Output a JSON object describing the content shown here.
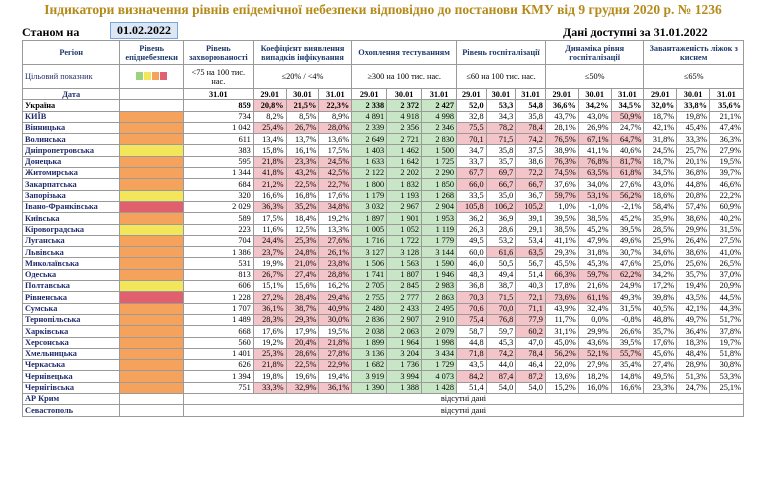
{
  "title": "Індикатори визначення рівнів епідемічної небезпеки відповідно до постанови КМУ від 9 грудня 2020 р. № 1236",
  "as_of_label": "Станом на",
  "as_of_date": "01.02.2022",
  "available_label": "Дані доступні за 31.01.2022",
  "headers": {
    "region": "Регіон",
    "level": "Рівень епіднебезпеки",
    "incidence": "Рівень захворюваності",
    "detection": "Коефіцієнт виявлення випадків інфікування",
    "testing": "Охоплення тестуванням",
    "hosp": "Рівень госпіталізації",
    "dynamics": "Динаміка рівня госпіталізації",
    "oxygen": "Завантаженість ліжок з киснем"
  },
  "targets": {
    "label": "Цільовий показник",
    "incidence": "<75 на 100 тис. нас.",
    "detection": "≤20% / <4%",
    "testing": "≥300 на 100 тис. нас.",
    "hosp": "≤60 на 100 тис. нас.",
    "dynamics": "≤50%",
    "oxygen": "≤65%"
  },
  "level_swatch_colors": [
    "#9cd27a",
    "#f4e65a",
    "#f5a25d",
    "#e0606d"
  ],
  "date_label": "Дата",
  "dates": {
    "incidence": [
      "31.01"
    ],
    "three": [
      "29.01",
      "30.01",
      "31.01"
    ]
  },
  "no_data_text": "відсутні дані",
  "colors": {
    "pink": "#f4c5c8",
    "green": "#c8e6c5",
    "orange": "#f5a25d",
    "yellow": "#f4e65a",
    "red": "#e0606d"
  },
  "rows": [
    {
      "region": "Україна",
      "level": "",
      "inc": "859",
      "det": [
        "20,8%",
        "21,5%",
        "22,3%"
      ],
      "test": [
        "2 338",
        "2 372",
        "2 427"
      ],
      "hosp": [
        "52,0",
        "53,3",
        "54,8"
      ],
      "dyn": [
        "36,6%",
        "34,2%",
        "34,5%"
      ],
      "oxy": [
        "32,0%",
        "33,8%",
        "35,6%"
      ],
      "det_pink": [
        1,
        1,
        1
      ],
      "hosp_pink": [
        0,
        0,
        0
      ],
      "dyn_pink": [
        0,
        0,
        0
      ],
      "test_green": [
        1,
        1,
        1
      ]
    },
    {
      "region": "КИЇВ",
      "level": "orange",
      "inc": "734",
      "det": [
        "8,2%",
        "8,5%",
        "8,9%"
      ],
      "test": [
        "4 891",
        "4 918",
        "4 998"
      ],
      "hosp": [
        "32,8",
        "34,3",
        "35,8"
      ],
      "dyn": [
        "43,7%",
        "43,0%",
        "50,9%"
      ],
      "oxy": [
        "18,7%",
        "19,8%",
        "21,1%"
      ],
      "det_pink": [
        0,
        0,
        0
      ],
      "hosp_pink": [
        0,
        0,
        0
      ],
      "dyn_pink": [
        0,
        0,
        1
      ],
      "test_green": [
        1,
        1,
        1
      ]
    },
    {
      "region": "Вінницька",
      "level": "orange",
      "inc": "1 042",
      "det": [
        "25,4%",
        "26,7%",
        "28,0%"
      ],
      "test": [
        "2 339",
        "2 356",
        "2 346"
      ],
      "hosp": [
        "75,5",
        "78,2",
        "78,4"
      ],
      "dyn": [
        "28,1%",
        "26,9%",
        "24,7%"
      ],
      "oxy": [
        "42,1%",
        "45,4%",
        "47,4%"
      ],
      "det_pink": [
        1,
        1,
        1
      ],
      "hosp_pink": [
        1,
        1,
        1
      ],
      "dyn_pink": [
        0,
        0,
        0
      ],
      "test_green": [
        1,
        1,
        1
      ]
    },
    {
      "region": "Волинська",
      "level": "orange",
      "inc": "611",
      "det": [
        "13,4%",
        "13,7%",
        "13,6%"
      ],
      "test": [
        "2 649",
        "2 721",
        "2 830"
      ],
      "hosp": [
        "70,1",
        "71,5",
        "74,2"
      ],
      "dyn": [
        "76,5%",
        "67,1%",
        "64,7%"
      ],
      "oxy": [
        "31,8%",
        "33,3%",
        "36,3%"
      ],
      "det_pink": [
        0,
        0,
        0
      ],
      "hosp_pink": [
        1,
        1,
        1
      ],
      "dyn_pink": [
        1,
        1,
        1
      ],
      "test_green": [
        1,
        1,
        1
      ]
    },
    {
      "region": "Дніпропетровська",
      "level": "yellow",
      "inc": "383",
      "det": [
        "15,8%",
        "16,1%",
        "17,5%"
      ],
      "test": [
        "1 403",
        "1 462",
        "1 500"
      ],
      "hosp": [
        "34,7",
        "35,8",
        "37,5"
      ],
      "dyn": [
        "38,9%",
        "41,1%",
        "40,6%"
      ],
      "oxy": [
        "24,5%",
        "25,7%",
        "27,9%"
      ],
      "det_pink": [
        0,
        0,
        0
      ],
      "hosp_pink": [
        0,
        0,
        0
      ],
      "dyn_pink": [
        0,
        0,
        0
      ],
      "test_green": [
        1,
        1,
        1
      ]
    },
    {
      "region": "Донецька",
      "level": "orange",
      "inc": "595",
      "det": [
        "21,8%",
        "23,3%",
        "24,5%"
      ],
      "test": [
        "1 633",
        "1 642",
        "1 725"
      ],
      "hosp": [
        "33,7",
        "35,7",
        "38,6"
      ],
      "dyn": [
        "76,3%",
        "76,8%",
        "81,7%"
      ],
      "oxy": [
        "18,7%",
        "20,1%",
        "19,5%"
      ],
      "det_pink": [
        1,
        1,
        1
      ],
      "hosp_pink": [
        0,
        0,
        0
      ],
      "dyn_pink": [
        1,
        1,
        1
      ],
      "test_green": [
        1,
        1,
        1
      ]
    },
    {
      "region": "Житомирська",
      "level": "orange",
      "inc": "1 344",
      "det": [
        "41,8%",
        "43,2%",
        "42,5%"
      ],
      "test": [
        "2 122",
        "2 202",
        "2 290"
      ],
      "hosp": [
        "67,7",
        "69,7",
        "72,2"
      ],
      "dyn": [
        "74,5%",
        "63,5%",
        "61,8%"
      ],
      "oxy": [
        "34,5%",
        "36,8%",
        "39,7%"
      ],
      "det_pink": [
        1,
        1,
        1
      ],
      "hosp_pink": [
        1,
        1,
        1
      ],
      "dyn_pink": [
        1,
        1,
        1
      ],
      "test_green": [
        1,
        1,
        1
      ]
    },
    {
      "region": "Закарпатська",
      "level": "orange",
      "inc": "684",
      "det": [
        "21,2%",
        "22,5%",
        "22,7%"
      ],
      "test": [
        "1 800",
        "1 832",
        "1 850"
      ],
      "hosp": [
        "66,0",
        "66,7",
        "66,7"
      ],
      "dyn": [
        "37,6%",
        "34,0%",
        "27,6%"
      ],
      "oxy": [
        "43,0%",
        "44,8%",
        "46,6%"
      ],
      "det_pink": [
        1,
        1,
        1
      ],
      "hosp_pink": [
        1,
        1,
        1
      ],
      "dyn_pink": [
        0,
        0,
        0
      ],
      "test_green": [
        1,
        1,
        1
      ]
    },
    {
      "region": "Запорізька",
      "level": "yellow",
      "inc": "320",
      "det": [
        "16,6%",
        "16,8%",
        "17,6%"
      ],
      "test": [
        "1 179",
        "1 193",
        "1 268"
      ],
      "hosp": [
        "33,5",
        "35,0",
        "36,7"
      ],
      "dyn": [
        "59,7%",
        "53,1%",
        "56,2%"
      ],
      "oxy": [
        "18,6%",
        "20,8%",
        "22,2%"
      ],
      "det_pink": [
        0,
        0,
        0
      ],
      "hosp_pink": [
        0,
        0,
        0
      ],
      "dyn_pink": [
        1,
        1,
        1
      ],
      "test_green": [
        1,
        1,
        1
      ]
    },
    {
      "region": "Івано-Франківська",
      "level": "red",
      "inc": "2 029",
      "det": [
        "36,3%",
        "35,2%",
        "34,8%"
      ],
      "test": [
        "3 032",
        "2 967",
        "2 904"
      ],
      "hosp": [
        "105,8",
        "106,2",
        "105,2"
      ],
      "dyn": [
        "1,0%",
        "-1,0%",
        "-2,1%"
      ],
      "oxy": [
        "58,4%",
        "57,4%",
        "60,9%"
      ],
      "det_pink": [
        1,
        1,
        1
      ],
      "hosp_pink": [
        1,
        1,
        1
      ],
      "dyn_pink": [
        0,
        0,
        0
      ],
      "test_green": [
        1,
        1,
        1
      ]
    },
    {
      "region": "Київська",
      "level": "orange",
      "inc": "589",
      "det": [
        "17,5%",
        "18,4%",
        "19,2%"
      ],
      "test": [
        "1 897",
        "1 901",
        "1 953"
      ],
      "hosp": [
        "36,2",
        "36,9",
        "39,1"
      ],
      "dyn": [
        "39,5%",
        "38,5%",
        "45,2%"
      ],
      "oxy": [
        "35,9%",
        "38,6%",
        "40,2%"
      ],
      "det_pink": [
        0,
        0,
        0
      ],
      "hosp_pink": [
        0,
        0,
        0
      ],
      "dyn_pink": [
        0,
        0,
        0
      ],
      "test_green": [
        1,
        1,
        1
      ]
    },
    {
      "region": "Кіровоградська",
      "level": "yellow",
      "inc": "223",
      "det": [
        "11,6%",
        "12,5%",
        "13,3%"
      ],
      "test": [
        "1 005",
        "1 052",
        "1 119"
      ],
      "hosp": [
        "26,3",
        "28,6",
        "29,1"
      ],
      "dyn": [
        "38,5%",
        "45,2%",
        "39,5%"
      ],
      "oxy": [
        "28,5%",
        "29,9%",
        "31,5%"
      ],
      "det_pink": [
        0,
        0,
        0
      ],
      "hosp_pink": [
        0,
        0,
        0
      ],
      "dyn_pink": [
        0,
        0,
        0
      ],
      "test_green": [
        1,
        1,
        1
      ]
    },
    {
      "region": "Луганська",
      "level": "orange",
      "inc": "704",
      "det": [
        "24,4%",
        "25,3%",
        "27,6%"
      ],
      "test": [
        "1 716",
        "1 722",
        "1 779"
      ],
      "hosp": [
        "49,5",
        "53,2",
        "53,4"
      ],
      "dyn": [
        "41,1%",
        "47,9%",
        "49,6%"
      ],
      "oxy": [
        "25,9%",
        "26,4%",
        "27,5%"
      ],
      "det_pink": [
        1,
        1,
        1
      ],
      "hosp_pink": [
        0,
        0,
        0
      ],
      "dyn_pink": [
        0,
        0,
        0
      ],
      "test_green": [
        1,
        1,
        1
      ]
    },
    {
      "region": "Львівська",
      "level": "orange",
      "inc": "1 386",
      "det": [
        "23,7%",
        "24,8%",
        "26,1%"
      ],
      "test": [
        "3 127",
        "3 128",
        "3 144"
      ],
      "hosp": [
        "60,0",
        "61,6",
        "63,5"
      ],
      "dyn": [
        "29,3%",
        "31,8%",
        "30,7%"
      ],
      "oxy": [
        "34,6%",
        "38,6%",
        "41,0%"
      ],
      "det_pink": [
        1,
        1,
        1
      ],
      "hosp_pink": [
        0,
        1,
        1
      ],
      "dyn_pink": [
        0,
        0,
        0
      ],
      "test_green": [
        1,
        1,
        1
      ]
    },
    {
      "region": "Миколаївська",
      "level": "orange",
      "inc": "531",
      "det": [
        "19,9%",
        "21,0%",
        "23,8%"
      ],
      "test": [
        "1 506",
        "1 563",
        "1 590"
      ],
      "hosp": [
        "46,0",
        "50,5",
        "56,7"
      ],
      "dyn": [
        "45,5%",
        "45,3%",
        "47,6%"
      ],
      "oxy": [
        "25,0%",
        "25,6%",
        "26,5%"
      ],
      "det_pink": [
        0,
        1,
        1
      ],
      "hosp_pink": [
        0,
        0,
        0
      ],
      "dyn_pink": [
        0,
        0,
        0
      ],
      "test_green": [
        1,
        1,
        1
      ]
    },
    {
      "region": "Одеська",
      "level": "orange",
      "inc": "813",
      "det": [
        "26,7%",
        "27,4%",
        "28,8%"
      ],
      "test": [
        "1 741",
        "1 807",
        "1 946"
      ],
      "hosp": [
        "48,3",
        "49,4",
        "51,4"
      ],
      "dyn": [
        "66,3%",
        "59,7%",
        "62,2%"
      ],
      "oxy": [
        "34,2%",
        "35,7%",
        "37,0%"
      ],
      "det_pink": [
        1,
        1,
        1
      ],
      "hosp_pink": [
        0,
        0,
        0
      ],
      "dyn_pink": [
        1,
        1,
        1
      ],
      "test_green": [
        1,
        1,
        1
      ]
    },
    {
      "region": "Полтавська",
      "level": "yellow",
      "inc": "606",
      "det": [
        "15,1%",
        "15,6%",
        "16,2%"
      ],
      "test": [
        "2 705",
        "2 845",
        "2 983"
      ],
      "hosp": [
        "36,8",
        "38,7",
        "40,3"
      ],
      "dyn": [
        "17,8%",
        "21,6%",
        "24,9%"
      ],
      "oxy": [
        "17,2%",
        "19,4%",
        "20,9%"
      ],
      "det_pink": [
        0,
        0,
        0
      ],
      "hosp_pink": [
        0,
        0,
        0
      ],
      "dyn_pink": [
        0,
        0,
        0
      ],
      "test_green": [
        1,
        1,
        1
      ]
    },
    {
      "region": "Рівненська",
      "level": "red",
      "inc": "1 228",
      "det": [
        "27,2%",
        "28,4%",
        "29,4%"
      ],
      "test": [
        "2 755",
        "2 777",
        "2 863"
      ],
      "hosp": [
        "70,3",
        "71,5",
        "72,1"
      ],
      "dyn": [
        "73,6%",
        "61,1%",
        "49,3%"
      ],
      "oxy": [
        "39,8%",
        "43,5%",
        "44,5%"
      ],
      "det_pink": [
        1,
        1,
        1
      ],
      "hosp_pink": [
        1,
        1,
        1
      ],
      "dyn_pink": [
        1,
        1,
        0
      ],
      "test_green": [
        1,
        1,
        1
      ]
    },
    {
      "region": "Сумська",
      "level": "orange",
      "inc": "1 707",
      "det": [
        "36,1%",
        "38,7%",
        "40,9%"
      ],
      "test": [
        "2 480",
        "2 433",
        "2 495"
      ],
      "hosp": [
        "70,6",
        "70,0",
        "71,1"
      ],
      "dyn": [
        "43,9%",
        "32,4%",
        "31,5%"
      ],
      "oxy": [
        "40,5%",
        "42,1%",
        "44,3%"
      ],
      "det_pink": [
        1,
        1,
        1
      ],
      "hosp_pink": [
        1,
        1,
        1
      ],
      "dyn_pink": [
        0,
        0,
        0
      ],
      "test_green": [
        1,
        1,
        1
      ]
    },
    {
      "region": "Тернопільська",
      "level": "orange",
      "inc": "1 489",
      "det": [
        "28,3%",
        "29,3%",
        "30,0%"
      ],
      "test": [
        "2 836",
        "2 907",
        "2 910"
      ],
      "hosp": [
        "75,4",
        "76,8",
        "77,9"
      ],
      "dyn": [
        "11,7%",
        "0,0%",
        "-0,8%"
      ],
      "oxy": [
        "48,8%",
        "49,7%",
        "51,7%"
      ],
      "det_pink": [
        1,
        1,
        1
      ],
      "hosp_pink": [
        1,
        1,
        1
      ],
      "dyn_pink": [
        0,
        0,
        0
      ],
      "test_green": [
        1,
        1,
        1
      ]
    },
    {
      "region": "Харківська",
      "level": "orange",
      "inc": "668",
      "det": [
        "17,6%",
        "17,9%",
        "19,5%"
      ],
      "test": [
        "2 038",
        "2 063",
        "2 079"
      ],
      "hosp": [
        "58,7",
        "59,7",
        "60,2"
      ],
      "dyn": [
        "31,1%",
        "29,9%",
        "26,6%"
      ],
      "oxy": [
        "35,7%",
        "36,4%",
        "37,8%"
      ],
      "det_pink": [
        0,
        0,
        0
      ],
      "hosp_pink": [
        0,
        0,
        1
      ],
      "dyn_pink": [
        0,
        0,
        0
      ],
      "test_green": [
        1,
        1,
        1
      ]
    },
    {
      "region": "Херсонська",
      "level": "orange",
      "inc": "560",
      "det": [
        "19,2%",
        "20,4%",
        "21,8%"
      ],
      "test": [
        "1 899",
        "1 964",
        "1 998"
      ],
      "hosp": [
        "44,8",
        "45,3",
        "47,0"
      ],
      "dyn": [
        "45,0%",
        "43,6%",
        "39,5%"
      ],
      "oxy": [
        "17,6%",
        "18,3%",
        "19,7%"
      ],
      "det_pink": [
        0,
        1,
        1
      ],
      "hosp_pink": [
        0,
        0,
        0
      ],
      "dyn_pink": [
        0,
        0,
        0
      ],
      "test_green": [
        1,
        1,
        1
      ]
    },
    {
      "region": "Хмельницька",
      "level": "orange",
      "inc": "1 401",
      "det": [
        "25,3%",
        "28,6%",
        "27,8%"
      ],
      "test": [
        "3 136",
        "3 204",
        "3 434"
      ],
      "hosp": [
        "71,8",
        "74,2",
        "78,4"
      ],
      "dyn": [
        "56,2%",
        "52,1%",
        "55,7%"
      ],
      "oxy": [
        "45,6%",
        "48,4%",
        "51,8%"
      ],
      "det_pink": [
        1,
        1,
        1
      ],
      "hosp_pink": [
        1,
        1,
        1
      ],
      "dyn_pink": [
        1,
        1,
        1
      ],
      "test_green": [
        1,
        1,
        1
      ]
    },
    {
      "region": "Черкаська",
      "level": "orange",
      "inc": "626",
      "det": [
        "21,8%",
        "22,5%",
        "22,9%"
      ],
      "test": [
        "1 682",
        "1 736",
        "1 729"
      ],
      "hosp": [
        "43,5",
        "44,0",
        "46,4"
      ],
      "dyn": [
        "22,0%",
        "27,9%",
        "35,4%"
      ],
      "oxy": [
        "27,4%",
        "28,9%",
        "30,8%"
      ],
      "det_pink": [
        1,
        1,
        1
      ],
      "hosp_pink": [
        0,
        0,
        0
      ],
      "dyn_pink": [
        0,
        0,
        0
      ],
      "test_green": [
        1,
        1,
        1
      ]
    },
    {
      "region": "Чернівецька",
      "level": "orange",
      "inc": "1 394",
      "det": [
        "19,8%",
        "19,6%",
        "19,4%"
      ],
      "test": [
        "3 919",
        "3 994",
        "4 073"
      ],
      "hosp": [
        "84,2",
        "87,4",
        "87,2"
      ],
      "dyn": [
        "13,6%",
        "18,2%",
        "14,8%"
      ],
      "oxy": [
        "49,5%",
        "51,3%",
        "53,3%"
      ],
      "det_pink": [
        0,
        0,
        0
      ],
      "hosp_pink": [
        1,
        1,
        1
      ],
      "dyn_pink": [
        0,
        0,
        0
      ],
      "test_green": [
        1,
        1,
        1
      ]
    },
    {
      "region": "Чернігівська",
      "level": "orange",
      "inc": "751",
      "det": [
        "33,3%",
        "32,9%",
        "36,1%"
      ],
      "test": [
        "1 390",
        "1 388",
        "1 428"
      ],
      "hosp": [
        "51,4",
        "54,0",
        "54,0"
      ],
      "dyn": [
        "15,2%",
        "16,0%",
        "16,6%"
      ],
      "oxy": [
        "23,3%",
        "24,7%",
        "25,1%"
      ],
      "det_pink": [
        1,
        1,
        1
      ],
      "hosp_pink": [
        0,
        0,
        0
      ],
      "dyn_pink": [
        0,
        0,
        0
      ],
      "test_green": [
        1,
        1,
        1
      ]
    }
  ],
  "missing_rows": [
    "АР Крим",
    "Севастополь"
  ]
}
